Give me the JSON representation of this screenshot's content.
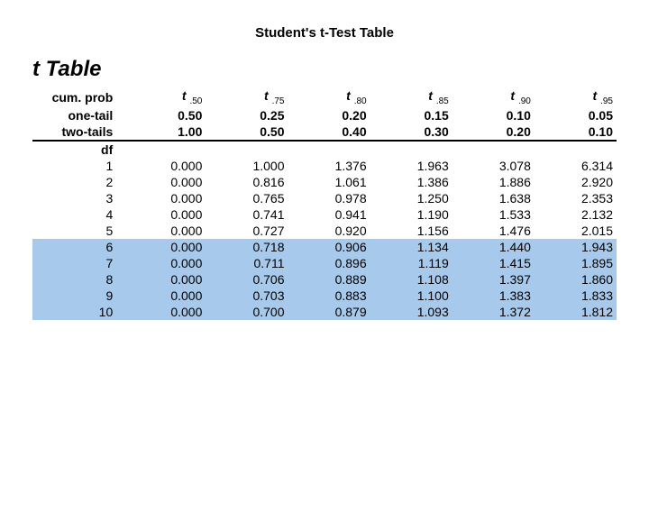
{
  "title": "Student's t-Test Table",
  "heading": "t Table",
  "labels": {
    "cum_prob": "cum. prob",
    "one_tail": "one-tail",
    "two_tails": "two-tails",
    "df": "df"
  },
  "columns": {
    "t_subscripts": [
      ".50",
      ".75",
      ".80",
      ".85",
      ".90",
      ".95"
    ],
    "one_tail": [
      "0.50",
      "0.25",
      "0.20",
      "0.15",
      "0.10",
      "0.05"
    ],
    "two_tails": [
      "1.00",
      "0.50",
      "0.40",
      "0.30",
      "0.20",
      "0.10"
    ]
  },
  "rows": [
    {
      "df": "1",
      "v": [
        "0.000",
        "1.000",
        "1.376",
        "1.963",
        "3.078",
        "6.314"
      ],
      "highlight": false
    },
    {
      "df": "2",
      "v": [
        "0.000",
        "0.816",
        "1.061",
        "1.386",
        "1.886",
        "2.920"
      ],
      "highlight": false
    },
    {
      "df": "3",
      "v": [
        "0.000",
        "0.765",
        "0.978",
        "1.250",
        "1.638",
        "2.353"
      ],
      "highlight": false
    },
    {
      "df": "4",
      "v": [
        "0.000",
        "0.741",
        "0.941",
        "1.190",
        "1.533",
        "2.132"
      ],
      "highlight": false
    },
    {
      "df": "5",
      "v": [
        "0.000",
        "0.727",
        "0.920",
        "1.156",
        "1.476",
        "2.015"
      ],
      "highlight": false
    },
    {
      "df": "6",
      "v": [
        "0.000",
        "0.718",
        "0.906",
        "1.134",
        "1.440",
        "1.943"
      ],
      "highlight": true
    },
    {
      "df": "7",
      "v": [
        "0.000",
        "0.711",
        "0.896",
        "1.119",
        "1.415",
        "1.895"
      ],
      "highlight": true
    },
    {
      "df": "8",
      "v": [
        "0.000",
        "0.706",
        "0.889",
        "1.108",
        "1.397",
        "1.860"
      ],
      "highlight": true
    },
    {
      "df": "9",
      "v": [
        "0.000",
        "0.703",
        "0.883",
        "1.100",
        "1.383",
        "1.833"
      ],
      "highlight": true
    },
    {
      "df": "10",
      "v": [
        "0.000",
        "0.700",
        "0.879",
        "1.093",
        "1.372",
        "1.812"
      ],
      "highlight": true
    }
  ],
  "style": {
    "highlight_color": "#a7c9ec",
    "background": "#ffffff",
    "text_color": "#000000",
    "rule_color": "#000000",
    "title_fontsize": 15,
    "heading_fontsize": 24,
    "body_fontsize": 14
  }
}
